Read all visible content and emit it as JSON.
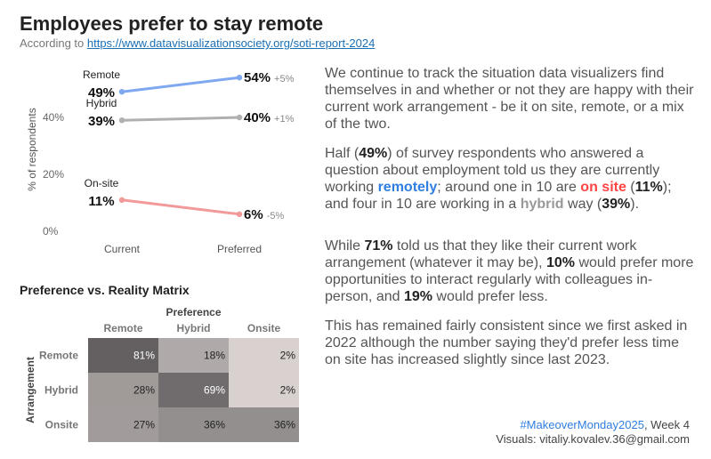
{
  "header": {
    "title": "Employees prefer to stay remote",
    "subtitle_prefix": "According to ",
    "subtitle_link": "https://www.datavisualizationsociety.org/soti-report-2024"
  },
  "chart_data": [
    {
      "type": "line",
      "chart": "slope",
      "ylabel": "% of respondents",
      "categories": [
        "Current",
        "Preferred"
      ],
      "yticks": [
        "0%",
        "20%",
        "40%"
      ],
      "ylim": [
        0,
        55
      ],
      "grid": false,
      "series": [
        {
          "name": "Remote",
          "values": [
            49,
            54
          ],
          "start_label": "49%",
          "end_label": "54%",
          "change": "+5%",
          "color": "#7fa8f0"
        },
        {
          "name": "Hybrid",
          "values": [
            39,
            40
          ],
          "start_label": "39%",
          "end_label": "40%",
          "change": "+1%",
          "color": "#b0b0b0"
        },
        {
          "name": "On-site",
          "values": [
            11,
            6
          ],
          "start_label": "11%",
          "end_label": "6%",
          "change": "-5%",
          "color": "#f29a9a"
        }
      ]
    },
    {
      "type": "heatmap",
      "title": "Preference vs. Reality Matrix",
      "xlabel": "Preference",
      "ylabel": "Arrangement",
      "columns": [
        "Remote",
        "Hybrid",
        "Onsite"
      ],
      "rows": [
        "Remote",
        "Hybrid",
        "Onsite"
      ],
      "values": [
        [
          81,
          18,
          2
        ],
        [
          28,
          69,
          2
        ],
        [
          27,
          36,
          36
        ]
      ],
      "cell_labels": [
        [
          "81%",
          "18%",
          "2%"
        ],
        [
          "28%",
          "69%",
          "2%"
        ],
        [
          "27%",
          "36%",
          "36%"
        ]
      ]
    }
  ],
  "narrative": {
    "p1": "We continue to track the situation data visualizers find themselves in and whether or not they are happy with their current work arrangement - be it on site, remote, or a mix of the two.",
    "p2": {
      "t1": "Half (",
      "b1": "49%",
      "t2": ") of survey respondents who answered a question about employment told us they are currently working ",
      "remote": "remotely",
      "t3": "; around one in 10 are ",
      "onsite": "on site",
      "t4": " (",
      "b2": "11%",
      "t5": "); and four in 10 are working in a ",
      "hybrid": "hybrid",
      "t6": " way (",
      "b3": "39%",
      "t7": ")."
    },
    "p3": {
      "t1": "While ",
      "b1": "71%",
      "t2": " told us that they like their current work arrangement (whatever it may be), ",
      "b2": "10%",
      "t3": " would prefer more opportunities to interact regularly with colleagues in-person, and ",
      "b3": "19%",
      "t4": " would prefer less."
    },
    "p4": "This has remained fairly consistent since we first asked in 2022 although the number saying they'd prefer less time on site has increased slightly since last 2023."
  },
  "footer": {
    "hashtag": "#MakeoverMonday2025",
    "week": ", Week 4",
    "credit": "Visuals: vitaliy.kovalev.36@gmail.com"
  },
  "colors": {
    "remote": "#2f7ee0",
    "onsite": "#ff4444",
    "hybrid": "#999999"
  }
}
